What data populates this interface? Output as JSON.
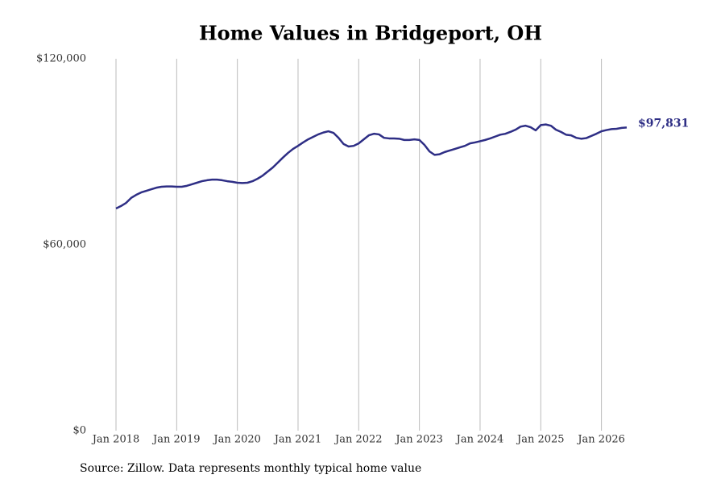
{
  "chart_data": {
    "type": "line",
    "title": "Home Values in Bridgeport, OH",
    "source": "Source: Zillow. Data represents monthly typical home value",
    "x": [
      "2018-01",
      "2018-02",
      "2018-03",
      "2018-04",
      "2018-05",
      "2018-06",
      "2018-07",
      "2018-08",
      "2018-09",
      "2018-10",
      "2018-11",
      "2018-12",
      "2019-01",
      "2019-02",
      "2019-03",
      "2019-04",
      "2019-05",
      "2019-06",
      "2019-07",
      "2019-08",
      "2019-09",
      "2019-10",
      "2019-11",
      "2019-12",
      "2020-01",
      "2020-02",
      "2020-03",
      "2020-04",
      "2020-05",
      "2020-06",
      "2020-07",
      "2020-08",
      "2020-09",
      "2020-10",
      "2020-11",
      "2020-12",
      "2021-01",
      "2021-02",
      "2021-03",
      "2021-04",
      "2021-05",
      "2021-06",
      "2021-07",
      "2021-08",
      "2021-09",
      "2021-10",
      "2021-11",
      "2021-12",
      "2022-01",
      "2022-02",
      "2022-03",
      "2022-04",
      "2022-05",
      "2022-06",
      "2022-07",
      "2022-08",
      "2022-09",
      "2022-10",
      "2022-11",
      "2022-12",
      "2023-01",
      "2023-02",
      "2023-03",
      "2023-04",
      "2023-05",
      "2023-06",
      "2023-07",
      "2023-08",
      "2023-09",
      "2023-10",
      "2023-11",
      "2023-12",
      "2024-01",
      "2024-02",
      "2024-03",
      "2024-04",
      "2024-05",
      "2024-06",
      "2024-07",
      "2024-08",
      "2024-09",
      "2024-10",
      "2024-11",
      "2024-12",
      "2025-01",
      "2025-02",
      "2025-03",
      "2025-04",
      "2025-05",
      "2025-06",
      "2025-07",
      "2025-08",
      "2025-09",
      "2025-10",
      "2025-11",
      "2025-12",
      "2026-01",
      "2026-02",
      "2026-03",
      "2026-04",
      "2026-05",
      "2026-06"
    ],
    "series": [
      {
        "name": "Bridgeport, OH",
        "color": "#2e2e85",
        "values": [
          71700,
          72500,
          73500,
          75100,
          76100,
          76900,
          77400,
          77900,
          78400,
          78700,
          78800,
          78800,
          78700,
          78700,
          79000,
          79500,
          80000,
          80500,
          80800,
          81000,
          81000,
          80800,
          80500,
          80300,
          80000,
          79900,
          80000,
          80500,
          81300,
          82300,
          83600,
          84900,
          86500,
          88100,
          89600,
          90900,
          91900,
          93000,
          94000,
          94800,
          95600,
          96200,
          96600,
          96100,
          94500,
          92500,
          91700,
          91900,
          92700,
          94000,
          95300,
          95800,
          95600,
          94500,
          94300,
          94300,
          94200,
          93800,
          93800,
          94000,
          93800,
          92200,
          90100,
          89000,
          89200,
          89900,
          90400,
          90900,
          91400,
          91900,
          92700,
          93000,
          93400,
          93800,
          94300,
          94900,
          95500,
          95800,
          96400,
          97100,
          98100,
          98400,
          97900,
          96900,
          98600,
          98800,
          98400,
          97100,
          96400,
          95500,
          95300,
          94500,
          94200,
          94400,
          95100,
          95800,
          96600,
          97000,
          97300,
          97400,
          97700,
          97831
        ],
        "value_labels": [
          null,
          null,
          null,
          null,
          null,
          null,
          null,
          null,
          null,
          null,
          null,
          null,
          null,
          null,
          null,
          null,
          null,
          null,
          null,
          null,
          null,
          null,
          null,
          null,
          null,
          null,
          null,
          null,
          null,
          null,
          null,
          null,
          null,
          null,
          null,
          null,
          null,
          null,
          null,
          null,
          null,
          null,
          null,
          null,
          null,
          null,
          null,
          null,
          null,
          null,
          null,
          null,
          null,
          null,
          null,
          null,
          null,
          null,
          null,
          null,
          null,
          null,
          null,
          null,
          null,
          null,
          null,
          null,
          null,
          null,
          null,
          null,
          null,
          null,
          null,
          null,
          null,
          null,
          null,
          null,
          null,
          null,
          null,
          null,
          null,
          null,
          null,
          null,
          null,
          null,
          null,
          null,
          null,
          null,
          null,
          null,
          null,
          null,
          null,
          null,
          null,
          "$97,831"
        ]
      }
    ],
    "xlim": [
      "2018-01",
      "2026-06"
    ],
    "xticks": [
      {
        "value": "2018-01",
        "label": "Jan 2018"
      },
      {
        "value": "2019-01",
        "label": "Jan 2019"
      },
      {
        "value": "2020-01",
        "label": "Jan 2020"
      },
      {
        "value": "2021-01",
        "label": "Jan 2021"
      },
      {
        "value": "2022-01",
        "label": "Jan 2022"
      },
      {
        "value": "2023-01",
        "label": "Jan 2023"
      },
      {
        "value": "2024-01",
        "label": "Jan 2024"
      },
      {
        "value": "2025-01",
        "label": "Jan 2025"
      },
      {
        "value": "2026-01",
        "label": "Jan 2026"
      }
    ],
    "ylim": [
      0,
      120000
    ],
    "yticks": [
      {
        "value": 0,
        "label": "$0"
      },
      {
        "value": 60000,
        "label": "$60,000"
      },
      {
        "value": 120000,
        "label": "$120,000"
      }
    ],
    "grid": "x"
  }
}
